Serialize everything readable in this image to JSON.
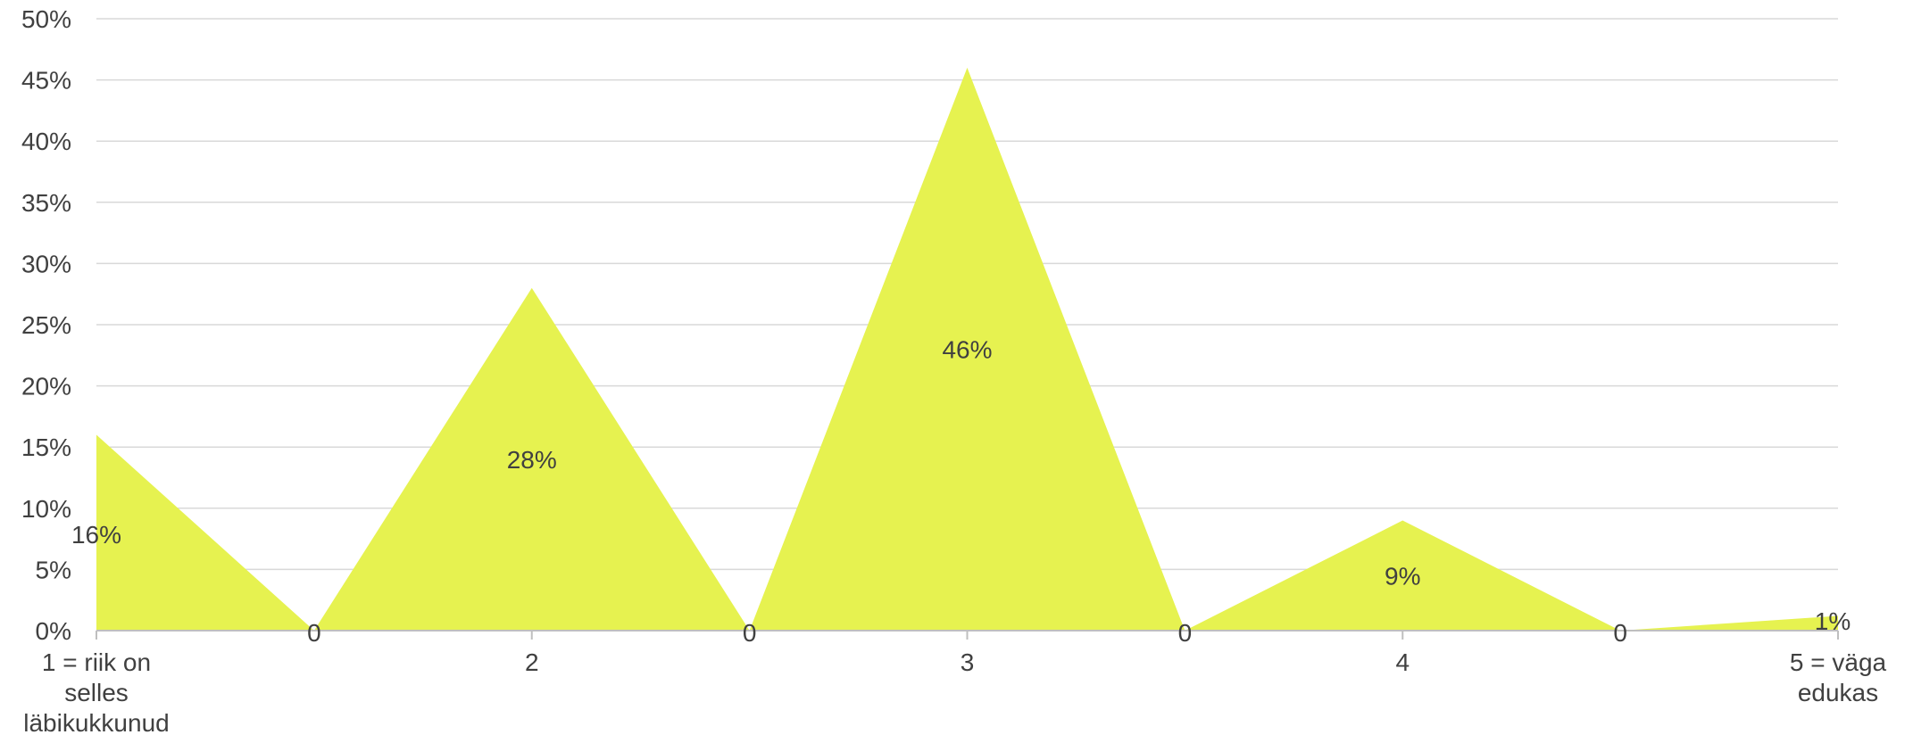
{
  "chart_data": {
    "type": "area",
    "title": "",
    "xlabel": "",
    "ylabel": "",
    "ylim": [
      0,
      50
    ],
    "y_ticks": [
      "0%",
      "5%",
      "10%",
      "15%",
      "20%",
      "25%",
      "30%",
      "35%",
      "40%",
      "45%",
      "50%"
    ],
    "grid": true,
    "legend": "none",
    "categories": [
      [
        "1 = riik on",
        "selles",
        "läbikukkunud"
      ],
      [
        "2"
      ],
      [
        "3"
      ],
      [
        "4"
      ],
      [
        "5 = väga",
        "edukas"
      ]
    ],
    "series": [
      {
        "color": "#e6f250",
        "points": [
          {
            "x": 1,
            "y": 16,
            "label": "16%"
          },
          {
            "x": 1.5,
            "y": 0,
            "label": "0"
          },
          {
            "x": 2,
            "y": 28,
            "label": "28%"
          },
          {
            "x": 2.5,
            "y": 0,
            "label": "0"
          },
          {
            "x": 3,
            "y": 46,
            "label": "46%"
          },
          {
            "x": 3.5,
            "y": 0,
            "label": "0"
          },
          {
            "x": 4,
            "y": 9,
            "label": "9%"
          },
          {
            "x": 4.5,
            "y": 0,
            "label": "0"
          },
          {
            "x": 5,
            "y": 1.2,
            "label": "1%"
          }
        ]
      }
    ]
  }
}
